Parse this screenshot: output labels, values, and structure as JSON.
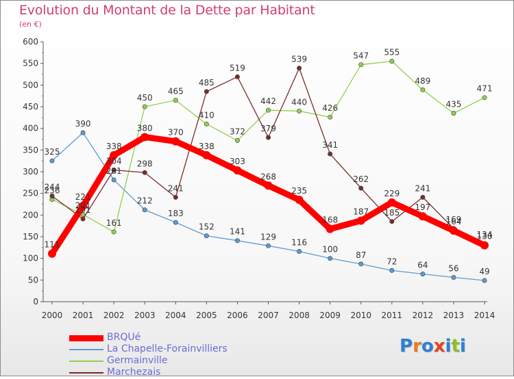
{
  "title": "Evolution du Montant de la Dette par Habitant",
  "unit_label": "(en €)",
  "logo": {
    "text": "Proxiti",
    "letters": [
      "P",
      "r",
      "o",
      "x",
      "i",
      "t",
      "i"
    ],
    "colors": [
      "#2e7fd6",
      "#f07b1c",
      "#2e7fd6",
      "#e8401c",
      "#2e7fd6",
      "#8cbf26",
      "#2e7fd6"
    ]
  },
  "chart_data": {
    "type": "line",
    "x": [
      "2000",
      "2001",
      "2002",
      "2003",
      "2004",
      "2005",
      "2006",
      "2007",
      "2008",
      "2009",
      "2010",
      "2011",
      "2012",
      "2013",
      "2014"
    ],
    "ylim": [
      0,
      600
    ],
    "yticks": [
      0,
      50,
      100,
      150,
      200,
      250,
      300,
      350,
      400,
      450,
      500,
      550,
      600
    ],
    "grid": false,
    "legend_position": "bottom-left",
    "series": [
      {
        "name": "BRQUé",
        "color": "#ff0000",
        "emphasis": "thick",
        "values": [
          111,
          221,
          338,
          380,
          370,
          338,
          303,
          268,
          235,
          168,
          187,
          229,
          197,
          164,
          130
        ]
      },
      {
        "name": "La Chapelle-Forainvilliers",
        "color": "#5b9bd5",
        "values": [
          325,
          390,
          281,
          212,
          183,
          152,
          141,
          129,
          116,
          100,
          87,
          72,
          64,
          56,
          49
        ]
      },
      {
        "name": "Germainville",
        "color": "#8fd04f",
        "values": [
          236,
          201,
          161,
          450,
          465,
          410,
          372,
          442,
          440,
          426,
          547,
          555,
          489,
          435,
          471
        ]
      },
      {
        "name": "Marchezais",
        "color": "#7a2a2a",
        "values": [
          244,
          191,
          304,
          298,
          241,
          485,
          519,
          379,
          539,
          341,
          262,
          185,
          241,
          169,
          134
        ]
      }
    ],
    "data_labels": [
      [
        111,
        221,
        338,
        380,
        370,
        338,
        303,
        268,
        235,
        168,
        187,
        229,
        197,
        164,
        130
      ],
      [
        325,
        390,
        281,
        212,
        183,
        152,
        141,
        129,
        116,
        100,
        87,
        72,
        64,
        56,
        49
      ],
      [
        236,
        201,
        161,
        450,
        465,
        410,
        372,
        442,
        440,
        426,
        547,
        555,
        489,
        435,
        471
      ],
      [
        244,
        191,
        304,
        298,
        241,
        485,
        519,
        379,
        539,
        341,
        262,
        185,
        241,
        169,
        134
      ]
    ]
  }
}
